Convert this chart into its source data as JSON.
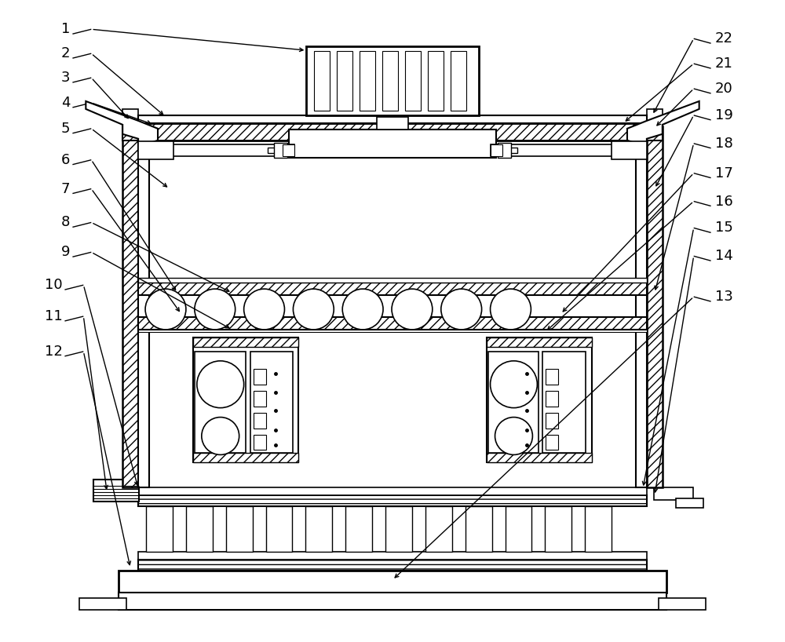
{
  "bg": "#ffffff",
  "lc": "#000000",
  "label_fs": 13,
  "left_labels": [
    [
      "1",
      88,
      782,
      115,
      782,
      390,
      755
    ],
    [
      "2",
      88,
      751,
      115,
      751,
      210,
      670
    ],
    [
      "3",
      88,
      720,
      115,
      720,
      165,
      665
    ],
    [
      "4",
      88,
      688,
      115,
      688,
      195,
      660
    ],
    [
      "5",
      88,
      655,
      115,
      655,
      215,
      578
    ],
    [
      "6",
      88,
      615,
      115,
      615,
      225,
      445
    ],
    [
      "7",
      88,
      578,
      115,
      578,
      230,
      418
    ],
    [
      "8",
      88,
      535,
      115,
      535,
      295,
      445
    ],
    [
      "9",
      88,
      497,
      115,
      497,
      295,
      398
    ],
    [
      "10",
      78,
      455,
      105,
      455,
      175,
      195
    ],
    [
      "11",
      78,
      415,
      105,
      415,
      135,
      190
    ],
    [
      "12",
      78,
      370,
      105,
      370,
      165,
      93
    ]
  ],
  "right_labels": [
    [
      "22",
      912,
      770,
      885,
      770,
      832,
      672
    ],
    [
      "21",
      912,
      738,
      885,
      738,
      795,
      662
    ],
    [
      "20",
      912,
      706,
      885,
      706,
      835,
      656
    ],
    [
      "19",
      912,
      672,
      885,
      672,
      835,
      578
    ],
    [
      "18",
      912,
      636,
      885,
      636,
      835,
      445
    ],
    [
      "17",
      912,
      598,
      885,
      598,
      715,
      418
    ],
    [
      "16",
      912,
      562,
      885,
      562,
      695,
      395
    ],
    [
      "15",
      912,
      528,
      885,
      528,
      820,
      195
    ],
    [
      "14",
      912,
      492,
      885,
      492,
      835,
      186
    ],
    [
      "13",
      912,
      440,
      885,
      440,
      500,
      78
    ]
  ]
}
